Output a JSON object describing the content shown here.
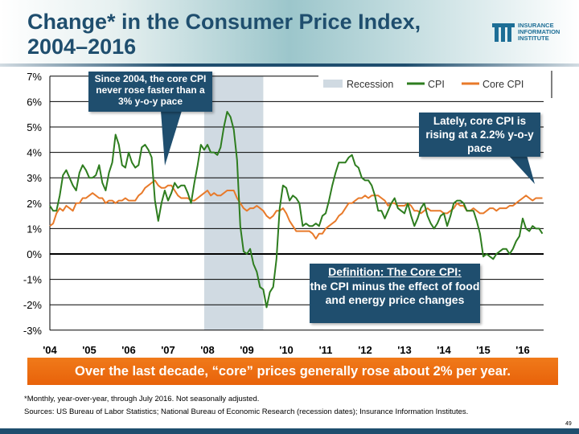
{
  "header": {
    "title": "Change* in the Consumer Price Index,\n2004–2016",
    "logo_text": "INSURANCE\nINFORMATION\nINSTITUTE"
  },
  "chart_data": {
    "type": "line",
    "title": "Change* in the Consumer Price Index, 2004–2016",
    "x_start": "2004-01",
    "x_end": "2016-07",
    "frequency": "monthly",
    "ylim": [
      -3,
      7
    ],
    "y_ticks": [
      "7%",
      "6%",
      "5%",
      "4%",
      "3%",
      "2%",
      "1%",
      "0%",
      "-1%",
      "-2%",
      "-3%"
    ],
    "y_tick_values": [
      7,
      6,
      5,
      4,
      3,
      2,
      1,
      0,
      -1,
      -2,
      -3
    ],
    "x_ticks": [
      "'04",
      "'05",
      "'06",
      "'07",
      "'08",
      "'09",
      "'10",
      "'11",
      "'12",
      "'13",
      "'14",
      "'15",
      "'16"
    ],
    "grid": true,
    "legend_placement": "top-right",
    "legend": [
      {
        "label": "Recession",
        "color": "#d0dae2"
      },
      {
        "label": "CPI",
        "color": "#2e7d1f"
      },
      {
        "label": "Core CPI",
        "color": "#e87a2a"
      }
    ],
    "recession": {
      "start": "2007-12",
      "end": "2009-06"
    },
    "series": [
      {
        "name": "CPI",
        "color": "#2e7d1f",
        "values": [
          1.9,
          1.7,
          1.7,
          2.3,
          3.1,
          3.3,
          3.0,
          2.7,
          2.5,
          3.2,
          3.5,
          3.3,
          3.0,
          3.0,
          3.1,
          3.5,
          2.8,
          2.5,
          3.2,
          3.6,
          4.7,
          4.3,
          3.5,
          3.4,
          4.0,
          3.6,
          3.4,
          3.5,
          4.2,
          4.3,
          4.1,
          3.8,
          2.1,
          1.3,
          2.0,
          2.5,
          2.1,
          2.4,
          2.8,
          2.6,
          2.7,
          2.7,
          2.4,
          2.0,
          2.8,
          3.5,
          4.3,
          4.1,
          4.3,
          4.0,
          4.0,
          3.9,
          4.2,
          5.0,
          5.6,
          5.4,
          4.9,
          3.7,
          1.1,
          0.1,
          0.0,
          0.2,
          -0.4,
          -0.7,
          -1.3,
          -1.4,
          -2.1,
          -1.5,
          -1.3,
          -0.2,
          1.8,
          2.7,
          2.6,
          2.1,
          2.3,
          2.2,
          2.0,
          1.1,
          1.2,
          1.1,
          1.1,
          1.2,
          1.1,
          1.5,
          1.6,
          2.1,
          2.7,
          3.2,
          3.6,
          3.6,
          3.6,
          3.8,
          3.9,
          3.5,
          3.4,
          3.0,
          2.9,
          2.9,
          2.7,
          2.3,
          1.7,
          1.7,
          1.4,
          1.7,
          2.0,
          2.2,
          1.8,
          1.7,
          1.6,
          2.0,
          1.5,
          1.1,
          1.4,
          1.8,
          2.0,
          1.5,
          1.2,
          1.0,
          1.2,
          1.5,
          1.6,
          1.1,
          1.5,
          2.0,
          2.1,
          2.1,
          2.0,
          1.7,
          1.7,
          1.7,
          1.3,
          0.8,
          -0.1,
          0.0,
          -0.1,
          -0.2,
          0.0,
          0.1,
          0.2,
          0.2,
          0.0,
          0.2,
          0.5,
          0.7,
          1.4,
          1.0,
          0.9,
          1.1,
          1.0,
          1.0,
          0.8
        ]
      },
      {
        "name": "Core CPI",
        "color": "#e87a2a",
        "values": [
          1.1,
          1.2,
          1.6,
          1.8,
          1.7,
          1.9,
          1.8,
          1.7,
          2.0,
          2.0,
          2.2,
          2.2,
          2.3,
          2.4,
          2.3,
          2.2,
          2.2,
          2.0,
          2.1,
          2.1,
          2.0,
          2.1,
          2.1,
          2.2,
          2.1,
          2.1,
          2.1,
          2.3,
          2.4,
          2.6,
          2.7,
          2.8,
          2.9,
          2.7,
          2.6,
          2.6,
          2.7,
          2.7,
          2.5,
          2.3,
          2.2,
          2.2,
          2.2,
          2.1,
          2.1,
          2.2,
          2.3,
          2.4,
          2.5,
          2.3,
          2.4,
          2.3,
          2.3,
          2.4,
          2.5,
          2.5,
          2.5,
          2.2,
          2.0,
          1.8,
          1.7,
          1.8,
          1.8,
          1.9,
          1.8,
          1.7,
          1.5,
          1.4,
          1.5,
          1.7,
          1.7,
          1.8,
          1.6,
          1.3,
          1.1,
          0.9,
          0.9,
          0.9,
          0.9,
          0.9,
          0.8,
          0.6,
          0.8,
          0.8,
          1.0,
          1.1,
          1.2,
          1.3,
          1.5,
          1.6,
          1.8,
          2.0,
          2.0,
          2.1,
          2.2,
          2.2,
          2.3,
          2.2,
          2.3,
          2.3,
          2.3,
          2.2,
          2.1,
          1.9,
          2.0,
          2.0,
          1.9,
          1.9,
          1.9,
          2.0,
          1.9,
          1.7,
          1.7,
          1.6,
          1.7,
          1.8,
          1.7,
          1.7,
          1.7,
          1.7,
          1.6,
          1.6,
          1.7,
          1.8,
          2.0,
          1.9,
          1.9,
          1.7,
          1.7,
          1.8,
          1.7,
          1.6,
          1.6,
          1.7,
          1.8,
          1.8,
          1.7,
          1.8,
          1.8,
          1.8,
          1.9,
          1.9,
          2.0,
          2.1,
          2.2,
          2.3,
          2.2,
          2.1,
          2.2,
          2.2,
          2.2
        ]
      }
    ]
  },
  "callouts": {
    "core_cap": "Since 2004, the core CPI never rose faster than a 3% y-o-y pace",
    "lately": "Lately, core CPI is rising at a 2.2% y-o-y pace",
    "definition_title": "Definition: The Core CPI:",
    "definition_body": "the CPI minus the effect of food and energy price changes"
  },
  "banner": "Over the last decade, “core” prices generally rose about 2% per year.",
  "footnote": "*Monthly, year-over-year, through July 2016. Not seasonally adjusted.",
  "sources": "Sources: US Bureau of Labor Statistics; National Bureau of Economic Research (recession dates); Insurance Information Institutes.",
  "page_number": "49"
}
